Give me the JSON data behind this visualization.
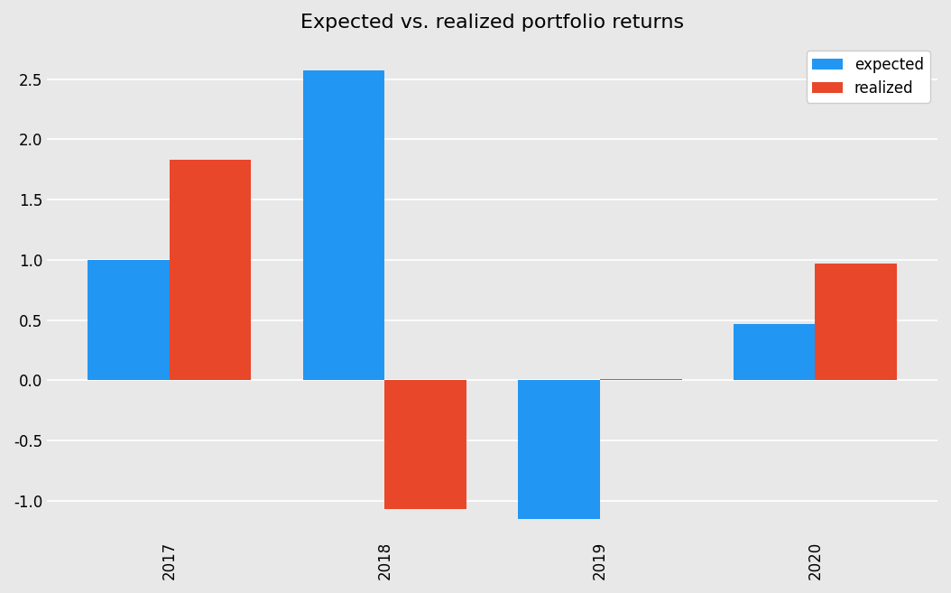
{
  "title": "Expected vs. realized portfolio returns",
  "years": [
    "2017",
    "2018",
    "2019",
    "2020"
  ],
  "expected": [
    1.0,
    2.57,
    -1.15,
    0.47
  ],
  "realized": [
    1.83,
    -1.07,
    0.01,
    0.97
  ],
  "expected_color": "#2196F3",
  "realized_color": "#E8472A",
  "background_color": "#E8E8E8",
  "ylim": [
    -1.3,
    2.8
  ],
  "yticks": [
    -1.0,
    -0.5,
    0.0,
    0.5,
    1.0,
    1.5,
    2.0,
    2.5
  ],
  "title_fontsize": 16,
  "legend_labels": [
    "expected",
    "realized"
  ],
  "bar_width": 0.38
}
